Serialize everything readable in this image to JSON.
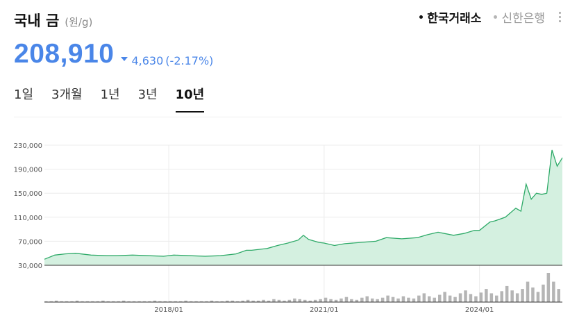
{
  "header": {
    "title": "국내 금",
    "unit": "(원/g)",
    "sources": [
      {
        "label": "한국거래소",
        "active": true
      },
      {
        "label": "신한은행",
        "active": false
      }
    ],
    "more_icon": "vertical-ellipsis-icon"
  },
  "price": {
    "value": "208,910",
    "change": "4,630",
    "change_pct": "(-2.17%)",
    "direction": "down",
    "color": "#4a86e8"
  },
  "tabs": [
    {
      "label": "1일",
      "active": false
    },
    {
      "label": "3개월",
      "active": false
    },
    {
      "label": "1년",
      "active": false
    },
    {
      "label": "3년",
      "active": false
    },
    {
      "label": "10년",
      "active": true
    }
  ],
  "chart_data": {
    "type": "area",
    "line_color": "#2eaa68",
    "fill_color": "#d4f0e0",
    "y_ticks": [
      "230,000",
      "190,000",
      "150,000",
      "110,000",
      "70,000",
      "30,000"
    ],
    "y_tick_values": [
      230000,
      190000,
      150000,
      110000,
      70000,
      30000
    ],
    "ylim": [
      30000,
      230000
    ],
    "x_ticks": [
      "2018/01",
      "2021/01",
      "2024/01"
    ],
    "x_tick_positions": [
      2018.0,
      2021.0,
      2024.0
    ],
    "xlim": [
      2015.6,
      2025.6
    ],
    "grid": true,
    "series": [
      {
        "x": [
          2015.6,
          2015.8,
          2016.0,
          2016.2,
          2016.5,
          2016.8,
          2017.0,
          2017.3,
          2017.6,
          2017.9,
          2018.1,
          2018.4,
          2018.7,
          2019.0,
          2019.3,
          2019.5,
          2019.6,
          2019.9,
          2020.1,
          2020.3,
          2020.5,
          2020.6,
          2020.7,
          2020.9,
          2021.0,
          2021.2,
          2021.4,
          2021.7,
          2022.0,
          2022.2,
          2022.5,
          2022.8,
          2023.0,
          2023.2,
          2023.5,
          2023.7,
          2023.9,
          2024.0,
          2024.2,
          2024.3,
          2024.5,
          2024.7,
          2024.8,
          2024.9,
          2025.0,
          2025.1,
          2025.2,
          2025.3,
          2025.4,
          2025.5,
          2025.6
        ],
        "y": [
          40000,
          47000,
          49000,
          50000,
          47000,
          46000,
          46000,
          47000,
          46000,
          45000,
          47000,
          46000,
          45000,
          46000,
          49000,
          55000,
          55000,
          58000,
          63000,
          67000,
          72000,
          80000,
          73000,
          68000,
          67000,
          63000,
          66000,
          68000,
          70000,
          76000,
          74000,
          76000,
          81000,
          85000,
          80000,
          83000,
          88000,
          88000,
          102000,
          104000,
          110000,
          125000,
          120000,
          165000,
          140000,
          150000,
          148000,
          150000,
          222000,
          195000,
          209000
        ]
      }
    ],
    "volume": [
      1,
      1,
      2,
      1,
      1,
      1,
      2,
      1,
      1,
      1,
      1,
      2,
      1,
      1,
      1,
      2,
      1,
      1,
      1,
      1,
      1,
      2,
      1,
      1,
      1,
      1,
      1,
      2,
      1,
      1,
      1,
      1,
      2,
      1,
      1,
      2,
      2,
      1,
      2,
      3,
      2,
      2,
      3,
      2,
      4,
      3,
      2,
      3,
      5,
      4,
      3,
      2,
      3,
      4,
      6,
      4,
      3,
      5,
      7,
      4,
      3,
      6,
      8,
      5,
      4,
      6,
      9,
      7,
      5,
      8,
      6,
      5,
      9,
      12,
      8,
      6,
      10,
      14,
      9,
      7,
      12,
      16,
      11,
      8,
      13,
      18,
      12,
      9,
      15,
      22,
      16,
      12,
      18,
      28,
      20,
      14,
      24,
      40,
      28,
      18
    ]
  }
}
